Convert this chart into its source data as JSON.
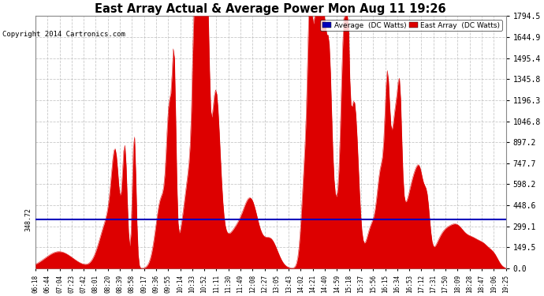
{
  "title": "East Array Actual & Average Power Mon Aug 11 19:26",
  "copyright": "Copyright 2014 Cartronics.com",
  "legend_labels": [
    "Average  (DC Watts)",
    "East Array  (DC Watts)"
  ],
  "legend_colors": [
    "#0000bb",
    "#dd0000"
  ],
  "avg_value": 348.72,
  "y_max": 1794.5,
  "y_ticks": [
    0.0,
    149.5,
    299.1,
    448.6,
    598.2,
    747.7,
    897.2,
    1046.8,
    1196.3,
    1345.8,
    1495.4,
    1644.9,
    1794.5
  ],
  "bg_color": "#ffffff",
  "plot_bg_color": "#ffffff",
  "grid_color": "#bbbbbb",
  "fill_color": "#dd0000",
  "avg_line_color": "#0000bb",
  "x_labels": [
    "06:18",
    "06:44",
    "07:04",
    "07:23",
    "07:42",
    "08:01",
    "08:20",
    "08:39",
    "08:58",
    "09:17",
    "09:36",
    "09:55",
    "10:14",
    "10:33",
    "10:52",
    "11:11",
    "11:30",
    "11:49",
    "12:08",
    "12:27",
    "13:05",
    "13:43",
    "14:02",
    "14:21",
    "14:40",
    "14:59",
    "15:18",
    "15:37",
    "15:56",
    "16:15",
    "16:34",
    "16:53",
    "17:12",
    "17:31",
    "17:50",
    "18:09",
    "18:28",
    "18:47",
    "19:06",
    "19:25"
  ]
}
